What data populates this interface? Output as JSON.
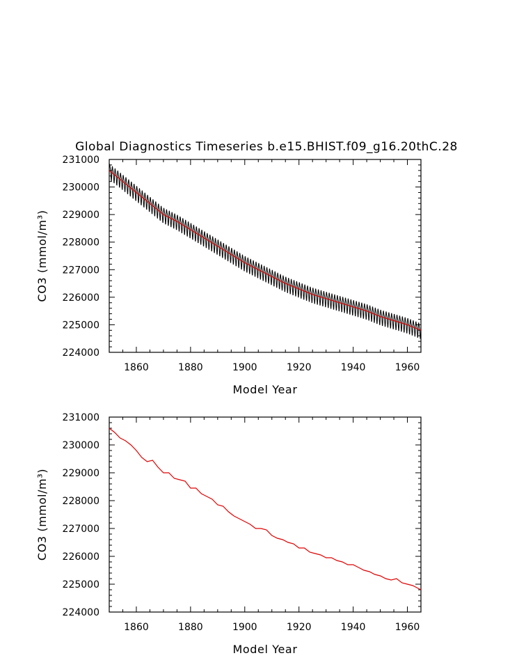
{
  "chart_data": [
    {
      "type": "line",
      "title": "Global Diagnostics Timeseries b.e15.BHIST.f09_g16.20thC.28",
      "xlabel": "Model Year",
      "ylabel": "CO3 (mmol/m³)",
      "xlim": [
        1850,
        1965
      ],
      "ylim": [
        224000,
        231000
      ],
      "xticks": [
        1860,
        1880,
        1900,
        1920,
        1940,
        1960
      ],
      "yticks": [
        224000,
        225000,
        226000,
        227000,
        228000,
        229000,
        230000,
        231000
      ],
      "grid": false,
      "series": [
        {
          "color": "#000000",
          "style": "monthly",
          "seasonal_amplitude": 250,
          "x": [
            1850,
            1855,
            1860,
            1865,
            1870,
            1875,
            1880,
            1885,
            1890,
            1895,
            1900,
            1905,
            1910,
            1915,
            1920,
            1925,
            1930,
            1935,
            1940,
            1945,
            1950,
            1955,
            1960,
            1965
          ],
          "values": [
            230600,
            230200,
            229800,
            229400,
            229000,
            228750,
            228450,
            228150,
            227850,
            227550,
            227250,
            227000,
            226750,
            226500,
            226300,
            226100,
            225950,
            225800,
            225650,
            225500,
            225300,
            225150,
            225000,
            224800
          ]
        },
        {
          "color": "#e00000",
          "style": "annual",
          "x": [
            1850,
            1855,
            1860,
            1865,
            1870,
            1875,
            1880,
            1885,
            1890,
            1895,
            1900,
            1905,
            1910,
            1915,
            1920,
            1925,
            1930,
            1935,
            1940,
            1945,
            1950,
            1955,
            1960,
            1965
          ],
          "values": [
            230600,
            230200,
            229800,
            229400,
            229000,
            228750,
            228450,
            228150,
            227850,
            227550,
            227250,
            227000,
            226750,
            226500,
            226300,
            226100,
            225950,
            225800,
            225650,
            225500,
            225300,
            225150,
            225000,
            224800
          ]
        }
      ]
    },
    {
      "type": "line",
      "title": "",
      "xlabel": "Model Year",
      "ylabel": "CO3 (mmol/m³)",
      "xlim": [
        1850,
        1965
      ],
      "ylim": [
        224000,
        231000
      ],
      "xticks": [
        1860,
        1880,
        1900,
        1920,
        1940,
        1960
      ],
      "yticks": [
        224000,
        225000,
        226000,
        227000,
        228000,
        229000,
        230000,
        231000
      ],
      "grid": false,
      "series": [
        {
          "color": "#e00000",
          "style": "annual",
          "x": [
            1850,
            1852,
            1854,
            1856,
            1858,
            1860,
            1862,
            1864,
            1866,
            1868,
            1870,
            1872,
            1874,
            1876,
            1878,
            1880,
            1882,
            1884,
            1886,
            1888,
            1890,
            1892,
            1894,
            1896,
            1898,
            1900,
            1902,
            1904,
            1906,
            1908,
            1910,
            1912,
            1914,
            1916,
            1918,
            1920,
            1922,
            1924,
            1926,
            1928,
            1930,
            1932,
            1934,
            1936,
            1938,
            1940,
            1942,
            1944,
            1946,
            1948,
            1950,
            1952,
            1954,
            1956,
            1958,
            1960,
            1962,
            1964,
            1965
          ],
          "values": [
            230600,
            230450,
            230250,
            230150,
            230000,
            229800,
            229550,
            229400,
            229450,
            229200,
            229000,
            229000,
            228800,
            228750,
            228700,
            228450,
            228450,
            228250,
            228150,
            228050,
            227850,
            227800,
            227600,
            227450,
            227350,
            227250,
            227150,
            227000,
            227000,
            226950,
            226750,
            226650,
            226600,
            226500,
            226450,
            226300,
            226300,
            226150,
            226100,
            226050,
            225950,
            225950,
            225850,
            225800,
            225700,
            225700,
            225600,
            225500,
            225450,
            225350,
            225300,
            225200,
            225150,
            225200,
            225050,
            225000,
            224950,
            224850,
            224800
          ]
        }
      ]
    }
  ]
}
